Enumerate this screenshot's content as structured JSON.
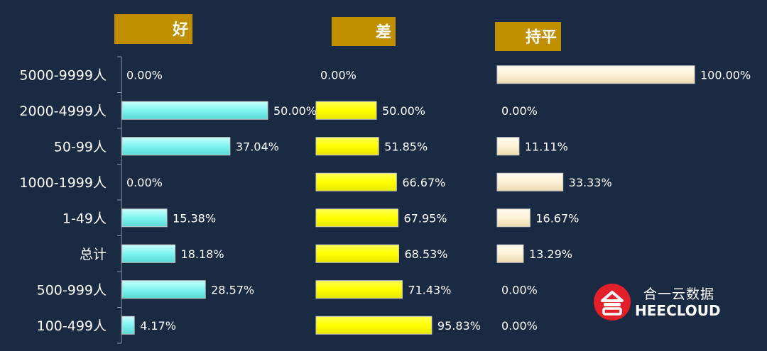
{
  "chart_data": {
    "type": "bar",
    "orientation": "horizontal",
    "categories": [
      "5000-9999人",
      "2000-4999人",
      "50-99人",
      "1000-1999人",
      "1-49人",
      "总计",
      "500-999人",
      "100-499人"
    ],
    "series": [
      {
        "name": "好",
        "values": [
          0.0,
          50.0,
          37.04,
          0.0,
          15.38,
          18.18,
          28.57,
          4.17
        ],
        "labels": [
          "0.00%",
          "50.00%",
          "37.04%",
          "0.00%",
          "15.38%",
          "18.18%",
          "28.57%",
          "4.17%"
        ],
        "color": "#7ff4f0"
      },
      {
        "name": "差",
        "values": [
          0.0,
          50.0,
          51.85,
          66.67,
          67.95,
          68.53,
          71.43,
          95.83
        ],
        "labels": [
          "0.00%",
          "50.00%",
          "51.85%",
          "66.67%",
          "67.95%",
          "68.53%",
          "71.43%",
          "95.83%"
        ],
        "color": "#ffff00"
      },
      {
        "name": "持平",
        "values": [
          100.0,
          0.0,
          11.11,
          33.33,
          16.67,
          13.29,
          0.0,
          0.0
        ],
        "labels": [
          "100.00%",
          "0.00%",
          "11.11%",
          "33.33%",
          "16.67%",
          "13.29%",
          "0.00%",
          "0.00%"
        ],
        "color": "#fdf2d8"
      }
    ],
    "xlim": [
      0,
      100
    ],
    "grid": false,
    "legend": "none"
  },
  "colors": {
    "background": "#1b2a43",
    "header": "#bf8f00",
    "axis": "#8a96aa"
  },
  "logo": {
    "cn": "合一云数据",
    "en": "HEECLOUD"
  }
}
